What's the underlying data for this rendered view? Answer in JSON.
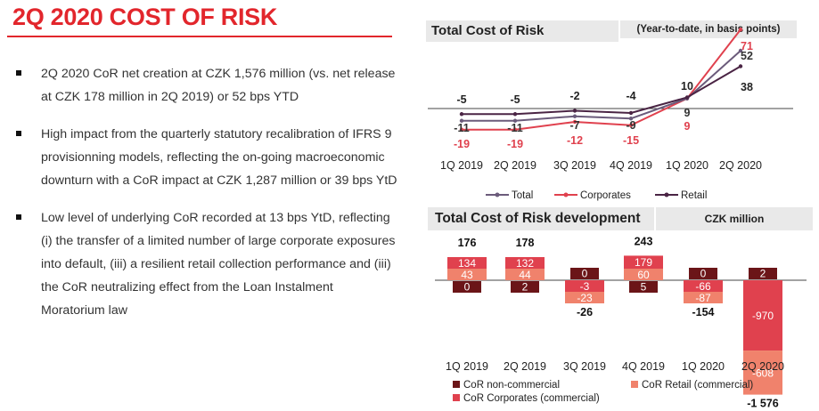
{
  "page": {
    "title": "2Q 2020 COST OF RISK",
    "bullets": [
      "2Q 2020 CoR net creation at CZK 1,576 million (vs. net release at CZK 178 million in 2Q 2019) or 52 bps YTD",
      "High impact from the quarterly statutory recalibration of IFRS 9 provisionning models, reflecting the on-going macroeconomic downturn with a CoR impact at CZK 1,287 million or 39 bps YtD",
      "Low level of underlying CoR recorded at 13 bps YtD, reflecting (i) the transfer of a limited number of large corporate exposures into default, (iii) a resilient retail collection performance and (iii) the CoR neutralizing effect from the Loan Instalment Moratorium law"
    ]
  },
  "chart_data": [
    {
      "type": "line",
      "title": "Total Cost of Risk",
      "subtitle": "(Year-to-date, in basis points)",
      "categories": [
        "1Q 2019",
        "2Q 2019",
        "3Q 2019",
        "4Q 2019",
        "1Q 2020",
        "2Q 2020"
      ],
      "series": [
        {
          "name": "Total",
          "values": [
            -11,
            -11,
            -7,
            -9,
            9,
            52
          ],
          "color": "#6b5b7b"
        },
        {
          "name": "Corporates",
          "values": [
            -19,
            -19,
            -12,
            -15,
            9,
            71
          ],
          "color": "#e0414e"
        },
        {
          "name": "Retail",
          "values": [
            -5,
            -5,
            -2,
            -4,
            10,
            38
          ],
          "color": "#4a2444"
        }
      ],
      "legend": "bottom"
    },
    {
      "type": "bar",
      "title": "Total Cost of Risk development",
      "subtitle": "CZK million",
      "categories": [
        "1Q 2019",
        "2Q 2019",
        "3Q 2019",
        "4Q 2019",
        "1Q 2020",
        "2Q 2020"
      ],
      "series": [
        {
          "name": "CoR non-commercial",
          "values": [
            0,
            2,
            0,
            5,
            0,
            2
          ],
          "labels": [
            "0",
            "2",
            "0",
            "5",
            "0",
            "2"
          ],
          "color": "#6b1518"
        },
        {
          "name": "CoR Corporates (commercial)",
          "values": [
            134,
            132,
            -3,
            179,
            -66,
            -970
          ],
          "labels": [
            "134",
            "132",
            "-3",
            "179",
            "-66",
            "-970"
          ],
          "color": "#e0414e"
        },
        {
          "name": "CoR Retail (commercial)",
          "values": [
            43,
            44,
            -23,
            60,
            -87,
            -608
          ],
          "labels": [
            "43",
            "44",
            "-23",
            "60",
            "-87",
            "-608"
          ],
          "color": "#f0826c"
        }
      ],
      "totals": [
        "176",
        "178",
        "-26",
        "243",
        "-154",
        "-1 576"
      ],
      "legend": "bottom"
    }
  ]
}
